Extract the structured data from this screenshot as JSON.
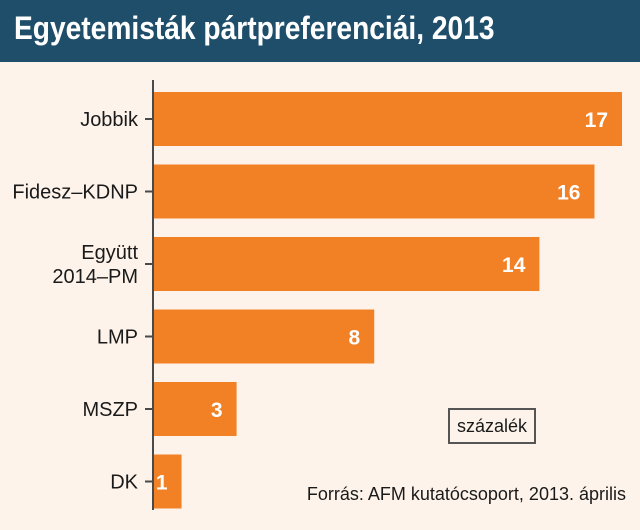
{
  "chart_data": {
    "type": "bar",
    "orientation": "horizontal",
    "title": "Egyetemisták pártpreferenciái, 2013",
    "categories": [
      "Jobbik",
      "Fidesz–KDNP",
      "Együtt 2014–PM",
      "LMP",
      "MSZP",
      "DK"
    ],
    "category_lines": [
      [
        "Jobbik"
      ],
      [
        "Fidesz–KDNP"
      ],
      [
        "Együtt",
        "2014–PM"
      ],
      [
        "LMP"
      ],
      [
        "MSZP"
      ],
      [
        "DK"
      ]
    ],
    "values": [
      17,
      16,
      14,
      8,
      3,
      1
    ],
    "unit_label": "százalék",
    "source": "Forrás: AFM kutatócsoport, 2013. április",
    "xlim": [
      0,
      17
    ],
    "grid": false,
    "colors": {
      "bar": "#f28025",
      "title_bg": "#1f4e6b",
      "background": "#fdf3ea",
      "axis": "#4a4a4a"
    }
  }
}
